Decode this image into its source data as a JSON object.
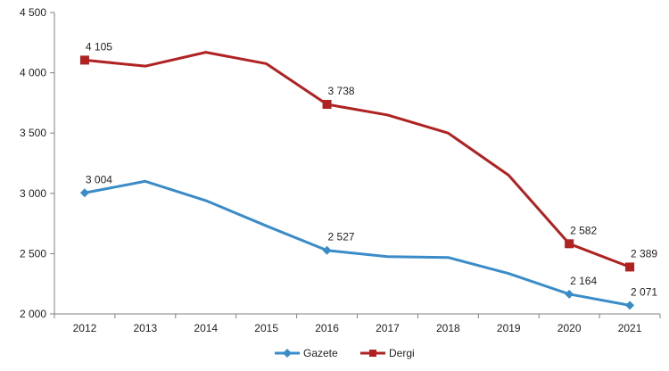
{
  "chart_data": {
    "type": "line",
    "categories": [
      "2012",
      "2013",
      "2014",
      "2015",
      "2016",
      "2017",
      "2018",
      "2019",
      "2020",
      "2021"
    ],
    "series": [
      {
        "name": "Gazete",
        "color": "#3A8CC8",
        "marker": "diamond",
        "values": [
          3004,
          3100,
          2940,
          2730,
          2527,
          2475,
          2468,
          2335,
          2164,
          2071
        ]
      },
      {
        "name": "Dergi",
        "color": "#B02222",
        "marker": "square",
        "values": [
          4105,
          4055,
          4170,
          4075,
          3738,
          3650,
          3500,
          3150,
          2582,
          2389
        ]
      }
    ],
    "data_labels": {
      "Gazete": {
        "2012": "3 004",
        "2016": "2 527",
        "2020": "2 164",
        "2021": "2 071"
      },
      "Dergi": {
        "2012": "4 105",
        "2016": "3 738",
        "2020": "2 582",
        "2021": "2 389"
      }
    },
    "y_ticks": [
      {
        "value": 2000,
        "label": "2 000"
      },
      {
        "value": 2500,
        "label": "2 500"
      },
      {
        "value": 3000,
        "label": "3 000"
      },
      {
        "value": 3500,
        "label": "3 500"
      },
      {
        "value": 4000,
        "label": "4 000"
      },
      {
        "value": 4500,
        "label": "4 500"
      }
    ],
    "ylim": [
      2000,
      4500
    ],
    "grid": false,
    "legend": "bottom-center",
    "title": "",
    "xlabel": "",
    "ylabel": ""
  }
}
